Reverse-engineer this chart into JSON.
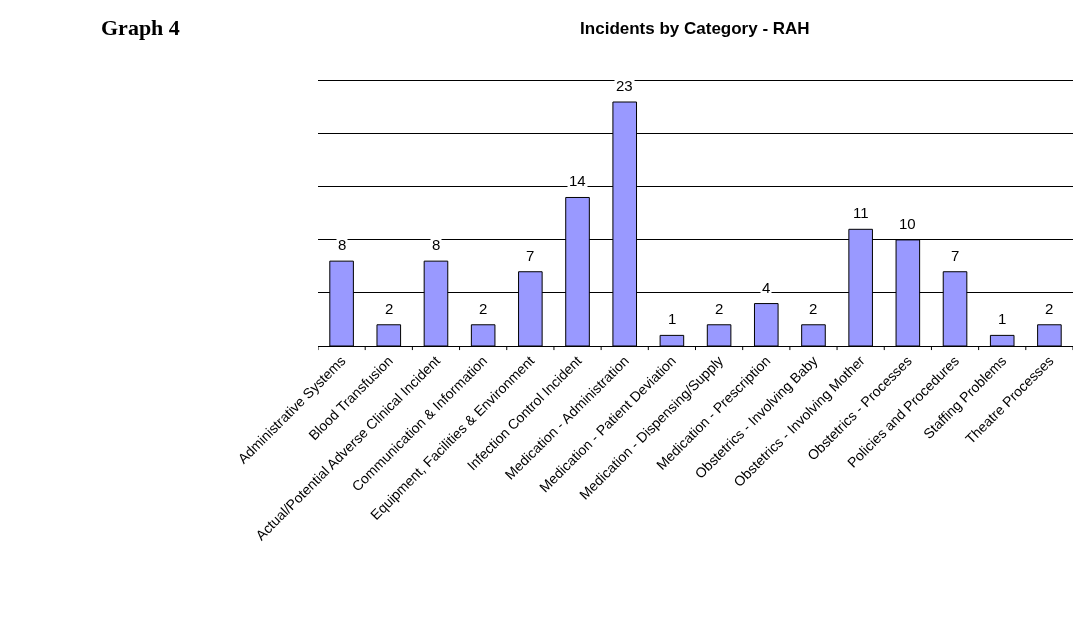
{
  "chart_data": {
    "type": "bar",
    "title": "Incidents by Category - RAH",
    "annotations": [
      "Graph 4"
    ],
    "categories": [
      "Administrative Systems",
      "Blood Transfusion",
      "Actual/Potential Adverse Clinical Incident",
      "Communication & Information",
      "Equipment, Facilities & Environment",
      "Infection Control Incident",
      "Medication - Administration",
      "Medication - Patient Deviation",
      "Medication - Dispensing/Supply",
      "Medication - Prescription",
      "Obstetrics - Involving Baby",
      "Obstetrics - Involving Mother",
      "Obstetrics - Processes",
      "Policies and Procedures",
      "Staffing Problems",
      "Theatre Processes"
    ],
    "values": [
      8,
      2,
      8,
      2,
      7,
      14,
      23,
      1,
      2,
      4,
      2,
      11,
      10,
      7,
      1,
      2
    ],
    "color": "#9999ff",
    "data_labels": true,
    "grid": "y",
    "legend": false
  }
}
